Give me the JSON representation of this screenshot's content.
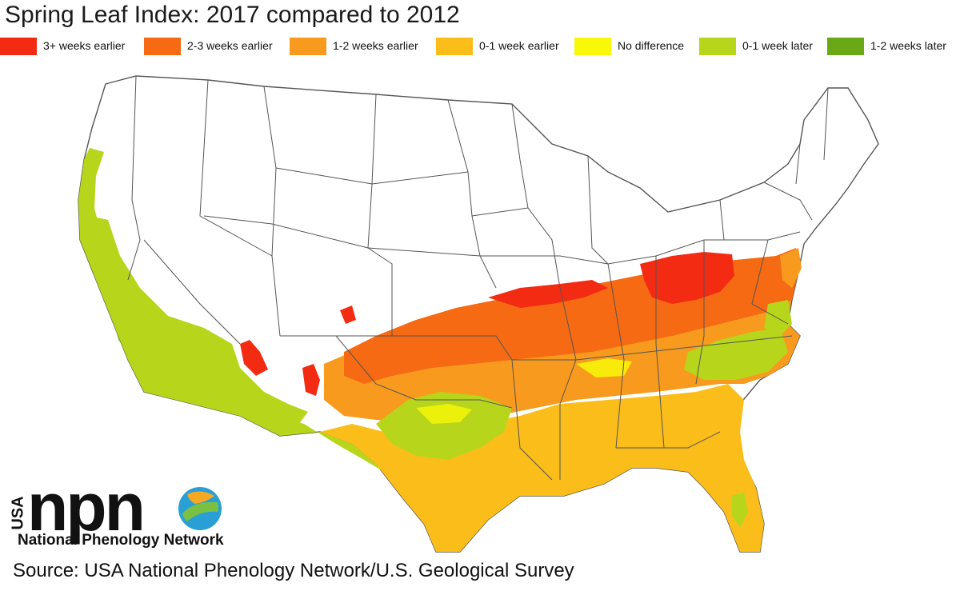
{
  "title": "Spring Leaf Index: 2017 compared to 2012",
  "legend": [
    {
      "label": "3+ weeks earlier",
      "color": "#f42b13"
    },
    {
      "label": "2-3 weeks earlier",
      "color": "#f56a12"
    },
    {
      "label": "1-2 weeks earlier",
      "color": "#f89a1d"
    },
    {
      "label": "0-1 week earlier",
      "color": "#fbbd1a"
    },
    {
      "label": "No difference",
      "color": "#f8f808"
    },
    {
      "label": "0-1 week later",
      "color": "#b7d61b"
    },
    {
      "label": "1-2 weeks later",
      "color": "#6aa817"
    }
  ],
  "logo": {
    "country": "USA",
    "acronym": "npn",
    "name_part1": "National",
    "name_part2": "Phenology Network"
  },
  "source": "Source: USA National Phenology Network/U.S. Geological Survey",
  "map": {
    "subject": "contiguous United States",
    "colors": {
      "land": "#ffffff",
      "border": "#555555"
    }
  }
}
